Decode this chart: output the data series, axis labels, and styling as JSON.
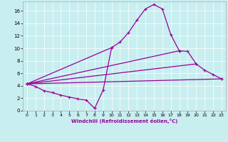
{
  "xlabel": "Windchill (Refroidissement éolien,°C)",
  "background_color": "#c8eef0",
  "line_color": "#990099",
  "series1_x": [
    0,
    1,
    2,
    3,
    4,
    5,
    6,
    7,
    8
  ],
  "series1_y": [
    4.3,
    3.9,
    3.2,
    2.9,
    2.5,
    2.2,
    1.9,
    1.7,
    0.4
  ],
  "series2_x": [
    0,
    10,
    11,
    12,
    13,
    14,
    15,
    16,
    17,
    18
  ],
  "series2_y": [
    4.3,
    10.1,
    11.0,
    12.5,
    14.5,
    16.3,
    17.0,
    16.3,
    12.2,
    9.6
  ],
  "series3_x": [
    8,
    9,
    10
  ],
  "series3_y": [
    0.4,
    3.3,
    10.1
  ],
  "series4_x": [
    0,
    18,
    19,
    20
  ],
  "series4_y": [
    4.3,
    9.6,
    9.5,
    7.5
  ],
  "series5_x": [
    0,
    20,
    21,
    22,
    23
  ],
  "series5_y": [
    4.3,
    7.5,
    6.5,
    5.8,
    5.1
  ],
  "series6_x": [
    0,
    23
  ],
  "series6_y": [
    4.3,
    5.1
  ],
  "ylim": [
    0,
    17.5
  ],
  "xlim": [
    -0.5,
    23.5
  ],
  "yticks": [
    0,
    2,
    4,
    6,
    8,
    10,
    12,
    14,
    16
  ],
  "xticks": [
    0,
    1,
    2,
    3,
    4,
    5,
    6,
    7,
    8,
    9,
    10,
    11,
    12,
    13,
    14,
    15,
    16,
    17,
    18,
    19,
    20,
    21,
    22,
    23
  ]
}
